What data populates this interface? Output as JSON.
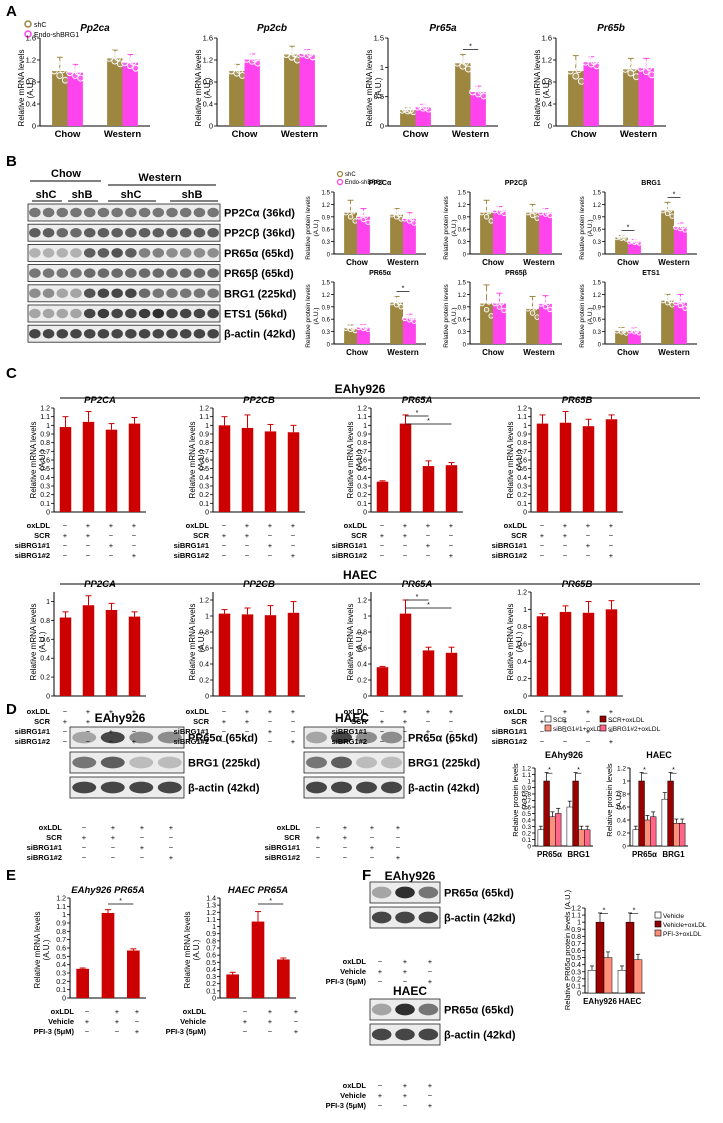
{
  "colors": {
    "olive": "#9c8640",
    "magenta": "#ff44ee",
    "red": "#cc0000",
    "darkred": "#990000",
    "salmon": "#ff8f7a",
    "white": "#ffffff",
    "axis": "#000000"
  },
  "panel_letters": {
    "A": "A",
    "B": "B",
    "C": "C",
    "D": "D",
    "E": "E",
    "F": "F"
  },
  "common": {
    "mrna_ylabel": "Relative mRNA levels",
    "au": "(A.U.)",
    "protein_ylabel": "Relative protein levels",
    "protein_ylabel_d": "Relative protein levels (A.U.)",
    "pr65_ylabel": "Relative PR65α protein levels (A.U.)",
    "chow": "Chow",
    "western": "Western",
    "legend_shc": "shC",
    "legend_endo": "Endo-shBRG1",
    "star": "*"
  },
  "treatments": {
    "oxldl": "oxLDL",
    "scr": "SCR",
    "si1": "siBRG1#1",
    "si2": "siBRG1#2",
    "vehicle": "Vehicle",
    "pfi": "PFI-3 (5μM)",
    "rows_c": [
      [
        "−",
        "+",
        "+",
        "+"
      ],
      [
        "+",
        "+",
        "−",
        "−"
      ],
      [
        "−",
        "−",
        "+",
        "−"
      ],
      [
        "−",
        "−",
        "−",
        "+"
      ]
    ],
    "rows_d": [
      [
        "−",
        "+",
        "+",
        "+"
      ],
      [
        "+",
        "+",
        "−",
        "−"
      ],
      [
        "−",
        "−",
        "+",
        "−"
      ],
      [
        "−",
        "−",
        "−",
        "+"
      ]
    ],
    "rows_e": [
      [
        "−",
        "+",
        "+"
      ],
      [
        "+",
        "+",
        "−"
      ],
      [
        "−",
        "−",
        "+"
      ]
    ]
  },
  "blot_b": {
    "chow": "Chow",
    "western": "Western",
    "shC": "shC",
    "shB": "shB",
    "bands": [
      "PP2Cα (36kd)",
      "PP2Cβ (36kd)",
      "PR65α (65kd)",
      "PR65β (65kd)",
      "BRG1 (225kd)",
      "ETS1 (56kd)",
      "β-actin (42kd)"
    ]
  },
  "blot_d": {
    "eahy": "EAhy926",
    "haec": "HAEC",
    "bands": [
      "PR65α (65kd)",
      "BRG1 (225kd)",
      "β-actin (42kd)"
    ]
  },
  "blot_f": {
    "eahy": "EAhy926",
    "haec": "HAEC",
    "bands": [
      "PR65α (65kd)",
      "β-actin (42kd)"
    ]
  },
  "section_titles": {
    "c_top": "EAhy926",
    "c_bottom": "HAEC"
  },
  "legend_d": [
    "SCR",
    "siBRG1#1+oxLDL",
    "SCR+oxLDL",
    "siBRG1#2+oxLDL"
  ],
  "legend_f": [
    "Vehicle",
    "Vehicle+oxLDL",
    "PFI-3+oxLDL"
  ],
  "chart_data": [
    {
      "id": "A1",
      "type": "bar",
      "title": "Pp2ca",
      "categories": [
        "Chow",
        "Western"
      ],
      "series": [
        {
          "name": "shC",
          "values": [
            1.0,
            1.23
          ],
          "err": [
            0.25,
            0.15
          ]
        },
        {
          "name": "Endo-shBRG1",
          "values": [
            0.97,
            1.15
          ],
          "err": [
            0.15,
            0.15
          ]
        }
      ],
      "ylim": [
        0,
        1.6
      ],
      "yticks": [
        "0",
        "0.4",
        "0.8",
        "1.2",
        "1.6"
      ]
    },
    {
      "id": "A2",
      "type": "bar",
      "title": "Pp2cb",
      "categories": [
        "Chow",
        "Western"
      ],
      "series": [
        {
          "name": "shC",
          "values": [
            1.0,
            1.3
          ],
          "err": [
            0.12,
            0.15
          ]
        },
        {
          "name": "Endo-shBRG1",
          "values": [
            1.21,
            1.31
          ],
          "err": [
            0.1,
            0.08
          ]
        }
      ],
      "ylim": [
        0,
        1.6
      ],
      "yticks": [
        "0",
        "0.4",
        "0.8",
        "1.2",
        "1.6"
      ]
    },
    {
      "id": "A3",
      "type": "bar",
      "title": "Pr65a",
      "categories": [
        "Chow",
        "Western"
      ],
      "series": [
        {
          "name": "shC",
          "values": [
            0.27,
            1.07
          ],
          "err": [
            0.04,
            0.15
          ]
        },
        {
          "name": "Endo-shBRG1",
          "values": [
            0.32,
            0.58
          ],
          "err": [
            0.05,
            0.1
          ]
        }
      ],
      "ylim": [
        0,
        1.5
      ],
      "yticks": [
        "0",
        "0.5",
        "1",
        "1.5"
      ],
      "sig": [
        [
          1,
          0,
          1,
          1
        ]
      ]
    },
    {
      "id": "A4",
      "type": "bar",
      "title": "Pr65b",
      "categories": [
        "Chow",
        "Western"
      ],
      "series": [
        {
          "name": "shC",
          "values": [
            1.0,
            1.03
          ],
          "err": [
            0.28,
            0.2
          ]
        },
        {
          "name": "Endo-shBRG1",
          "values": [
            1.16,
            1.05
          ],
          "err": [
            0.1,
            0.18
          ]
        }
      ],
      "ylim": [
        0,
        1.6
      ],
      "yticks": [
        "0",
        "0.4",
        "0.8",
        "1.2",
        "1.6"
      ]
    },
    {
      "id": "B1",
      "type": "bar",
      "title": "PP2Cα",
      "categories": [
        "Chow",
        "Western"
      ],
      "series": [
        {
          "name": "shC",
          "values": [
            1.0,
            0.95
          ],
          "err": [
            0.3,
            0.15
          ]
        },
        {
          "name": "Endo-shBRG1",
          "values": [
            0.9,
            0.85
          ],
          "err": [
            0.2,
            0.15
          ]
        }
      ],
      "ylim": [
        0,
        1.5
      ],
      "yticks": [
        "0",
        "0.3",
        "0.6",
        "0.9",
        "1.2",
        "1.5"
      ]
    },
    {
      "id": "B2",
      "type": "bar",
      "title": "PP2Cβ",
      "categories": [
        "Chow",
        "Western"
      ],
      "series": [
        {
          "name": "shC",
          "values": [
            1.0,
            1.0
          ],
          "err": [
            0.3,
            0.2
          ]
        },
        {
          "name": "Endo-shBRG1",
          "values": [
            1.05,
            1.0
          ],
          "err": [
            0.1,
            0.1
          ]
        }
      ],
      "ylim": [
        0,
        1.5
      ],
      "yticks": [
        "0",
        "0.3",
        "0.6",
        "0.9",
        "1.2",
        "1.5"
      ]
    },
    {
      "id": "B3",
      "type": "bar",
      "title": "BRG1",
      "categories": [
        "Chow",
        "Western"
      ],
      "series": [
        {
          "name": "shC",
          "values": [
            0.4,
            1.05
          ],
          "err": [
            0.05,
            0.2
          ]
        },
        {
          "name": "Endo-shBRG1",
          "values": [
            0.3,
            0.65
          ],
          "err": [
            0.05,
            0.1
          ]
        }
      ],
      "ylim": [
        0,
        1.5
      ],
      "yticks": [
        "0",
        "0.3",
        "0.6",
        "0.9",
        "1.2",
        "1.5"
      ],
      "sig": [
        [
          0,
          0,
          0,
          1
        ],
        [
          1,
          0,
          1,
          1
        ]
      ]
    },
    {
      "id": "B4",
      "type": "bar",
      "title": "PR65α",
      "categories": [
        "Chow",
        "Western"
      ],
      "series": [
        {
          "name": "shC",
          "values": [
            0.38,
            1.0
          ],
          "err": [
            0.08,
            0.15
          ]
        },
        {
          "name": "Endo-shBRG1",
          "values": [
            0.4,
            0.62
          ],
          "err": [
            0.07,
            0.1
          ]
        }
      ],
      "ylim": [
        0,
        1.5
      ],
      "yticks": [
        "0",
        "0.3",
        "0.6",
        "0.9",
        "1.2",
        "1.5"
      ],
      "sig": [
        [
          1,
          0,
          1,
          1
        ]
      ]
    },
    {
      "id": "B5",
      "type": "bar",
      "title": "PR65β",
      "categories": [
        "Chow",
        "Western"
      ],
      "series": [
        {
          "name": "shC",
          "values": [
            0.98,
            0.85
          ],
          "err": [
            0.45,
            0.3
          ]
        },
        {
          "name": "Endo-shBRG1",
          "values": [
            0.98,
            0.97
          ],
          "err": [
            0.25,
            0.2
          ]
        }
      ],
      "ylim": [
        0,
        1.5
      ],
      "yticks": [
        "0",
        "0.3",
        "0.6",
        "0.9",
        "1.2",
        "1.5"
      ]
    },
    {
      "id": "B6",
      "type": "bar",
      "title": "ETS1",
      "categories": [
        "Chow",
        "Western"
      ],
      "series": [
        {
          "name": "shC",
          "values": [
            0.32,
            1.05
          ],
          "err": [
            0.08,
            0.15
          ]
        },
        {
          "name": "Endo-shBRG1",
          "values": [
            0.32,
            1.0
          ],
          "err": [
            0.07,
            0.2
          ]
        }
      ],
      "ylim": [
        0,
        1.5
      ],
      "yticks": [
        "0",
        "0.3",
        "0.6",
        "0.9",
        "1.2",
        "1.5"
      ]
    },
    {
      "id": "C1",
      "type": "bar",
      "title": "PP2CA",
      "values": [
        0.98,
        1.04,
        0.95,
        1.02
      ],
      "err": [
        0.12,
        0.12,
        0.07,
        0.07
      ],
      "ylim": [
        0,
        1.2
      ],
      "yticks": [
        "0",
        "0.1",
        "0.2",
        "0.3",
        "0.4",
        "0.5",
        "0.6",
        "0.7",
        "0.8",
        "0.9",
        "1",
        "1.1",
        "1.2"
      ]
    },
    {
      "id": "C2",
      "type": "bar",
      "title": "PP2CB",
      "values": [
        1.0,
        0.97,
        0.93,
        0.92
      ],
      "err": [
        0.1,
        0.15,
        0.08,
        0.08
      ],
      "ylim": [
        0,
        1.2
      ],
      "yticks": [
        "0",
        "0.1",
        "0.2",
        "0.3",
        "0.4",
        "0.5",
        "0.6",
        "0.7",
        "0.8",
        "0.9",
        "1",
        "1.1",
        "1.2"
      ]
    },
    {
      "id": "C3",
      "type": "bar",
      "title": "PR65A",
      "values": [
        0.35,
        1.02,
        0.53,
        0.54
      ],
      "err": [
        0.01,
        0.1,
        0.06,
        0.03
      ],
      "ylim": [
        0,
        1.2
      ],
      "yticks": [
        "0",
        "0.1",
        "0.2",
        "0.3",
        "0.4",
        "0.5",
        "0.6",
        "0.7",
        "0.8",
        "0.9",
        "1",
        "1.1",
        "1.2"
      ],
      "sig": [
        [
          1,
          2
        ],
        [
          1,
          3
        ]
      ]
    },
    {
      "id": "C4",
      "type": "bar",
      "title": "PR65B",
      "values": [
        1.02,
        1.03,
        0.99,
        1.07
      ],
      "err": [
        0.1,
        0.13,
        0.08,
        0.05
      ],
      "ylim": [
        0,
        1.2
      ],
      "yticks": [
        "0",
        "0.1",
        "0.2",
        "0.3",
        "0.4",
        "0.5",
        "0.6",
        "0.7",
        "0.8",
        "0.9",
        "1",
        "1.1",
        "1.2"
      ]
    },
    {
      "id": "C5",
      "type": "bar",
      "title": "PP2CA",
      "values": [
        0.83,
        0.96,
        0.91,
        0.84
      ],
      "err": [
        0.06,
        0.1,
        0.07,
        0.05
      ],
      "ylim": [
        0,
        1.1
      ],
      "yticks": [
        "0",
        "0.2",
        "0.4",
        "0.6",
        "0.8",
        "1"
      ]
    },
    {
      "id": "C6",
      "type": "bar",
      "title": "PP2CB",
      "values": [
        1.03,
        1.02,
        1.01,
        1.04
      ],
      "err": [
        0.05,
        0.08,
        0.12,
        0.14
      ],
      "ylim": [
        0,
        1.3
      ],
      "yticks": [
        "0",
        "0.2",
        "0.4",
        "0.6",
        "0.8",
        "1",
        "1.2"
      ]
    },
    {
      "id": "C7",
      "type": "bar",
      "title": "PR65A",
      "values": [
        0.36,
        1.03,
        0.57,
        0.54
      ],
      "err": [
        0.01,
        0.17,
        0.04,
        0.07
      ],
      "ylim": [
        0,
        1.3
      ],
      "yticks": [
        "0",
        "0.2",
        "0.4",
        "0.6",
        "0.8",
        "1",
        "1.2"
      ],
      "sig": [
        [
          1,
          2
        ],
        [
          1,
          3
        ]
      ]
    },
    {
      "id": "C8",
      "type": "bar",
      "title": "PR65B",
      "values": [
        0.92,
        0.97,
        0.96,
        1.0
      ],
      "err": [
        0.03,
        0.07,
        0.13,
        0.1
      ],
      "ylim": [
        0,
        1.2
      ],
      "yticks": [
        "0",
        "0.2",
        "0.4",
        "0.6",
        "0.8",
        "1",
        "1.2"
      ]
    },
    {
      "id": "D1",
      "type": "bar",
      "title": "EAhy926",
      "categories": [
        "PR65α",
        "BRG1"
      ],
      "series": [
        {
          "name": "SCR",
          "values": [
            0.25,
            0.6
          ]
        },
        {
          "name": "SCR+oxLDL",
          "values": [
            1.0,
            1.0
          ]
        },
        {
          "name": "siBRG1#1+oxLDL",
          "values": [
            0.45,
            0.25
          ]
        },
        {
          "name": "siBRG1#2+oxLDL",
          "values": [
            0.5,
            0.25
          ]
        }
      ],
      "ylim": [
        0,
        1.2
      ],
      "yticks": [
        "0",
        "0.1",
        "0.2",
        "0.3",
        "0.4",
        "0.5",
        "0.6",
        "0.7",
        "0.8",
        "0.9",
        "1",
        "1.1",
        "1.2"
      ]
    },
    {
      "id": "D2",
      "type": "bar",
      "title": "HAEC",
      "categories": [
        "PR65α",
        "BRG1"
      ],
      "series": [
        {
          "name": "SCR",
          "values": [
            0.25,
            0.72
          ]
        },
        {
          "name": "SCR+oxLDL",
          "values": [
            1.0,
            1.0
          ]
        },
        {
          "name": "siBRG1#1+oxLDL",
          "values": [
            0.4,
            0.35
          ]
        },
        {
          "name": "siBRG1#2+oxLDL",
          "values": [
            0.45,
            0.35
          ]
        }
      ],
      "ylim": [
        0,
        1.2
      ],
      "yticks": [
        "0",
        "0.2",
        "0.4",
        "0.6",
        "0.8",
        "1",
        "1.2"
      ]
    },
    {
      "id": "E1",
      "type": "bar",
      "title": "EAhy926 PR65A",
      "values": [
        0.35,
        1.02,
        0.57
      ],
      "err": [
        0.01,
        0.04,
        0.02
      ],
      "ylim": [
        0,
        1.2
      ],
      "yticks": [
        "0",
        "0.1",
        "0.2",
        "0.3",
        "0.4",
        "0.5",
        "0.6",
        "0.7",
        "0.8",
        "0.9",
        "1",
        "1.1",
        "1.2"
      ]
    },
    {
      "id": "E2",
      "type": "bar",
      "title": "HAEC PR65A",
      "values": [
        0.33,
        1.07,
        0.54
      ],
      "err": [
        0.03,
        0.14,
        0.02
      ],
      "ylim": [
        0,
        1.4
      ],
      "yticks": [
        "0",
        "0.1",
        "0.2",
        "0.3",
        "0.4",
        "0.5",
        "0.6",
        "0.7",
        "0.8",
        "0.9",
        "1",
        "1.1",
        "1.2",
        "1.3",
        "1.4"
      ]
    },
    {
      "id": "F1",
      "type": "bar",
      "categories": [
        "EAhy926",
        "HAEC"
      ],
      "series": [
        {
          "name": "Vehicle",
          "values": [
            0.32,
            0.32
          ]
        },
        {
          "name": "Vehicle+oxLDL",
          "values": [
            1.0,
            1.0
          ]
        },
        {
          "name": "PFI-3+oxLDL",
          "values": [
            0.5,
            0.47
          ]
        }
      ],
      "ylim": [
        0,
        1.2
      ],
      "yticks": [
        "0",
        "0.1",
        "0.2",
        "0.3",
        "0.4",
        "0.5",
        "0.6",
        "0.7",
        "0.8",
        "0.9",
        "1",
        "1.1",
        "1.2"
      ]
    }
  ]
}
